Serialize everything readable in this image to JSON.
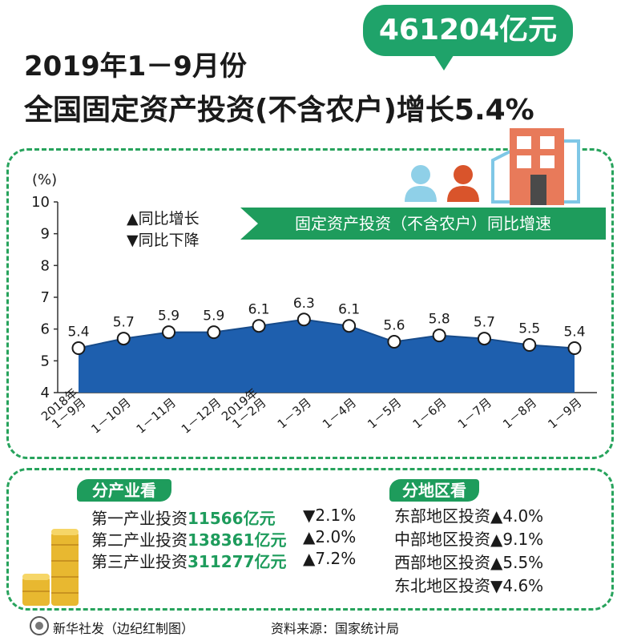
{
  "title": {
    "line1": "2019年1－9月份",
    "line2": "全国固定资产投资(不含农户)增长5.4%"
  },
  "highlight_total": "461204亿元",
  "legend": {
    "up": "▲同比增长",
    "down": "▼同比下降"
  },
  "banner": "固定资产投资（不含农户）同比增速",
  "chart_data": {
    "type": "area",
    "title": "固定资产投资（不含农户）同比增速",
    "ylabel": "(%)",
    "ylim": [
      4,
      10
    ],
    "yticks": [
      4,
      5,
      6,
      7,
      8,
      9,
      10
    ],
    "categories": [
      "2018年 1－9月",
      "1－10月",
      "1－11月",
      "1－12月",
      "2019年 1－2月",
      "1－3月",
      "1－4月",
      "1－5月",
      "1－6月",
      "1－7月",
      "1－8月",
      "1－9月"
    ],
    "values": [
      5.4,
      5.7,
      5.9,
      5.9,
      6.1,
      6.3,
      6.1,
      5.6,
      5.8,
      5.7,
      5.5,
      5.4
    ],
    "labels": [
      "5.4",
      "5.7",
      "5.9",
      "5.9",
      "6.1",
      "6.3",
      "6.1",
      "5.6",
      "5.8",
      "5.7",
      "5.5",
      "5.4"
    ],
    "fill_color": "#1e5fae",
    "grid": false
  },
  "industry": {
    "tag": "分产业看",
    "rows": [
      {
        "name": "第一产业投资",
        "value": "11566亿元",
        "change": "▼2.1%"
      },
      {
        "name": "第二产业投资",
        "value": "138361亿元",
        "change": "▲2.0%"
      },
      {
        "name": "第三产业投资",
        "value": "311277亿元",
        "change": "▲7.2%"
      }
    ]
  },
  "region": {
    "tag": "分地区看",
    "rows": [
      {
        "name": "东部地区投资",
        "change": "▲4.0%"
      },
      {
        "name": "中部地区投资",
        "change": "▲9.1%"
      },
      {
        "name": "西部地区投资",
        "change": "▲5.5%"
      },
      {
        "name": "东北地区投资",
        "change": "▼4.6%"
      }
    ]
  },
  "footer": {
    "credit": "新华社发（边纪红制图）",
    "source": "资料来源：国家统计局"
  },
  "colors": {
    "accent_green": "#1e9c5c",
    "area_blue": "#1e5fae",
    "bubble_green": "#1fa36a"
  }
}
